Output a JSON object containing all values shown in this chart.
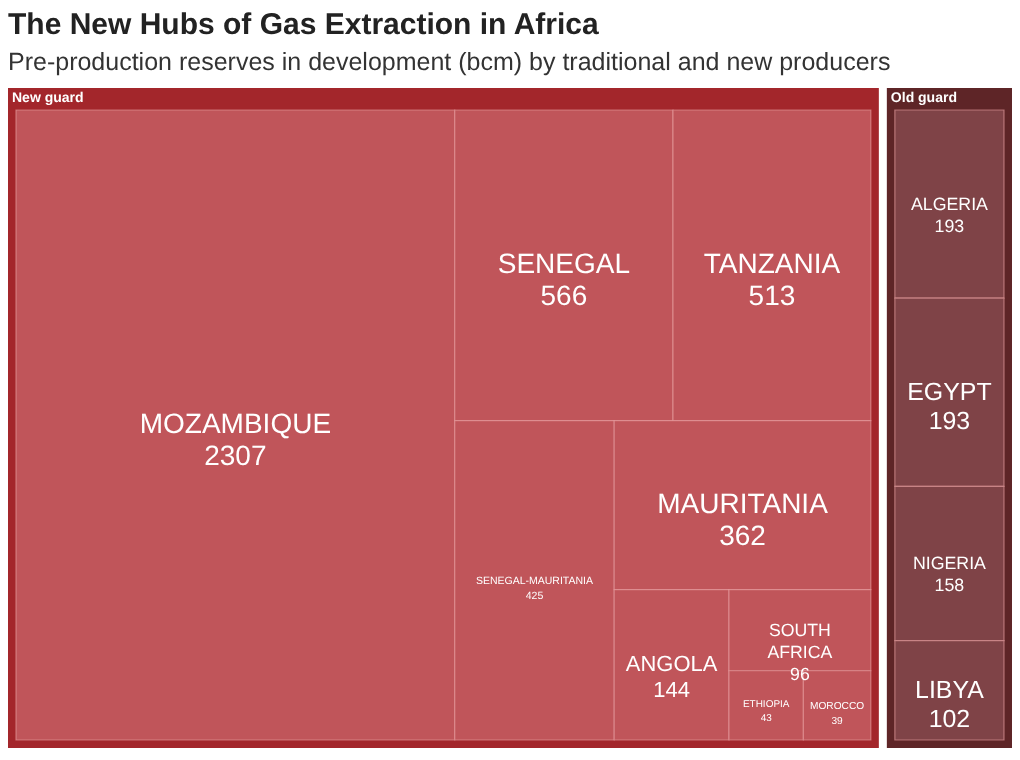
{
  "chart_data": {
    "type": "other",
    "title": "The New Hubs of Gas Extraction in Africa",
    "subtitle": "Pre-production reserves in development (bcm) by traditional and new producers",
    "categories": [
      "MOZAMBIQUE",
      "SENEGAL",
      "TANZANIA",
      "SENEGAL-MAURITANIA",
      "MAURITANIA",
      "ANGOLA",
      "SOUTH AFRICA",
      "ETHIOPIA",
      "MOROCCO",
      "ALGERIA",
      "EGYPT",
      "NIGERIA",
      "LIBYA"
    ],
    "series": [
      {
        "name": "New guard",
        "color": "#c0555a",
        "values": [
          2307,
          566,
          513,
          425,
          362,
          144,
          96,
          43,
          39,
          null,
          null,
          null,
          null
        ]
      },
      {
        "name": "Old guard",
        "color": "#7f4347",
        "values": [
          null,
          null,
          null,
          null,
          null,
          null,
          null,
          null,
          null,
          193,
          193,
          158,
          102
        ]
      }
    ],
    "data_labels": true
  }
}
